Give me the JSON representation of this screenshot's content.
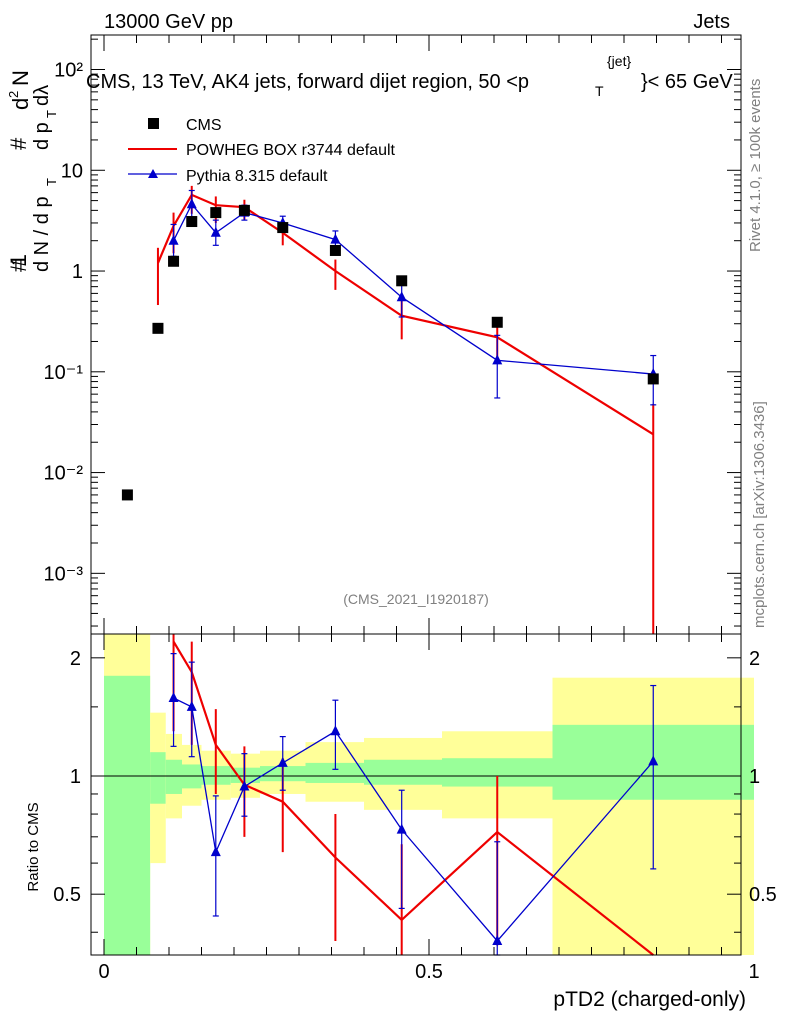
{
  "header": {
    "energy_label": "13000 GeV pp",
    "category_label": "Jets",
    "plot_title_main": "CMS, 13 TeV, AK4 jets, forward dijet region, 50 <p",
    "plot_title_sup": "{jet}",
    "plot_title_sub": "T",
    "plot_title_end": "}< 65 GeV",
    "analysis_id": "(CMS_2021_I1920187)",
    "rivet_label": "Rivet 4.1.0, ≥ 100k events",
    "site_label": "mcplots.cern.ch [arXiv:1306.3436]"
  },
  "colors": {
    "data": "#000000",
    "powheg": "#ee0000",
    "pythia": "#0000cc",
    "band_inner": "#99ff99",
    "band_outer": "#ffff99"
  },
  "chart_data": [
    {
      "type": "line",
      "panel": "main",
      "yscale": "log",
      "ylabel": "# 1 / d N / d p_T # d²N / # d p_T d λ",
      "ytick_labels": [
        "10⁻³",
        "10⁻²",
        "10⁻¹",
        "1",
        "10",
        "10²"
      ],
      "xlim": [
        0,
        1
      ],
      "ylim": [
        0.00025,
        220
      ],
      "legend": {
        "placement": "top-left",
        "entries": [
          "CMS",
          "POWHEG BOX r3744 default",
          "Pythia 8.315 default"
        ]
      },
      "series": [
        {
          "name": "CMS",
          "marker": "square",
          "x": [
            0.036,
            0.083,
            0.107,
            0.135,
            0.172,
            0.216,
            0.275,
            0.356,
            0.458,
            0.605,
            0.845
          ],
          "y": [
            0.006,
            0.27,
            1.25,
            3.1,
            3.8,
            4.0,
            2.7,
            1.6,
            0.8,
            0.31,
            0.085
          ]
        },
        {
          "name": "POWHEG BOX r3744 default",
          "marker": "line",
          "x": [
            0.083,
            0.107,
            0.135,
            0.172,
            0.216,
            0.275,
            0.356,
            0.458,
            0.605,
            0.845
          ],
          "y": [
            1.2,
            2.8,
            5.7,
            4.5,
            4.3,
            2.4,
            1.0,
            0.36,
            0.22,
            0.024
          ],
          "err_lo": [
            0.74,
            1.3,
            2.0,
            1.5,
            1.1,
            0.6,
            0.35,
            0.15,
            0.1,
            0.02395
          ],
          "err_hi": [
            0.5,
            1.0,
            1.3,
            1.0,
            0.8,
            0.5,
            0.3,
            0.2,
            0.1,
            0.024
          ]
        },
        {
          "name": "Pythia 8.315 default",
          "marker": "triangle",
          "x": [
            0.107,
            0.135,
            0.172,
            0.216,
            0.275,
            0.356,
            0.458,
            0.605,
            0.845
          ],
          "y": [
            2.0,
            4.6,
            2.4,
            3.8,
            3.0,
            2.05,
            0.55,
            0.13,
            0.095
          ],
          "err_lo": [
            0.6,
            1.3,
            0.6,
            0.6,
            0.55,
            0.4,
            0.2,
            0.075,
            0.048
          ],
          "err_hi": [
            0.9,
            1.7,
            0.8,
            0.7,
            0.5,
            0.45,
            0.25,
            0.1,
            0.05
          ]
        }
      ]
    },
    {
      "type": "line",
      "panel": "ratio",
      "xlabel": "pTD2 (charged-only)",
      "ylabel": "Ratio to CMS",
      "xlim": [
        0,
        1
      ],
      "ylim": [
        0.35,
        2.3
      ],
      "yticks": [
        0.5,
        1,
        2
      ],
      "xticks": [
        0,
        0.5,
        1
      ],
      "band_edges": [
        0,
        0.071,
        0.095,
        0.12,
        0.15,
        0.195,
        0.24,
        0.31,
        0.4,
        0.52,
        0.69,
        1.0
      ],
      "band_inner": {
        "lo": [
          0.3,
          0.85,
          0.9,
          0.93,
          0.95,
          0.96,
          0.97,
          0.96,
          0.95,
          0.94,
          0.87
        ],
        "hi": [
          1.8,
          1.15,
          1.1,
          1.07,
          1.06,
          1.05,
          1.06,
          1.08,
          1.1,
          1.11,
          1.35
        ]
      },
      "band_outer": {
        "lo": [
          0.3,
          0.6,
          0.78,
          0.84,
          0.87,
          0.88,
          0.9,
          0.86,
          0.82,
          0.78,
          0.3
        ],
        "hi": [
          2.3,
          1.45,
          1.28,
          1.2,
          1.16,
          1.14,
          1.16,
          1.22,
          1.25,
          1.3,
          1.78
        ]
      },
      "series": [
        {
          "name": "POWHEG BOX r3744 default",
          "x": [
            0.107,
            0.135,
            0.172,
            0.216,
            0.275,
            0.356,
            0.458,
            0.605,
            0.845
          ],
          "y": [
            2.2,
            1.84,
            1.2,
            0.95,
            0.86,
            0.62,
            0.43,
            0.72,
            0.28
          ],
          "err_lo": [
            0.9,
            0.64,
            0.3,
            0.25,
            0.22,
            0.24,
            0.1,
            0.35,
            0.0
          ],
          "err_hi": [
            0.9,
            0.36,
            0.28,
            0.24,
            0.25,
            0.18,
            0.24,
            0.28,
            0.0
          ]
        },
        {
          "name": "Pythia 8.315 default",
          "x": [
            0.107,
            0.135,
            0.172,
            0.216,
            0.275,
            0.356,
            0.458,
            0.605,
            0.845
          ],
          "y": [
            1.58,
            1.5,
            0.64,
            0.94,
            1.08,
            1.3,
            0.73,
            0.38,
            1.09
          ],
          "err_lo": [
            0.39,
            0.38,
            0.2,
            0.15,
            0.16,
            0.26,
            0.27,
            0.22,
            0.51
          ],
          "err_hi": [
            0.47,
            0.45,
            0.25,
            0.2,
            0.18,
            0.26,
            0.19,
            0.3,
            0.61
          ]
        }
      ]
    }
  ]
}
